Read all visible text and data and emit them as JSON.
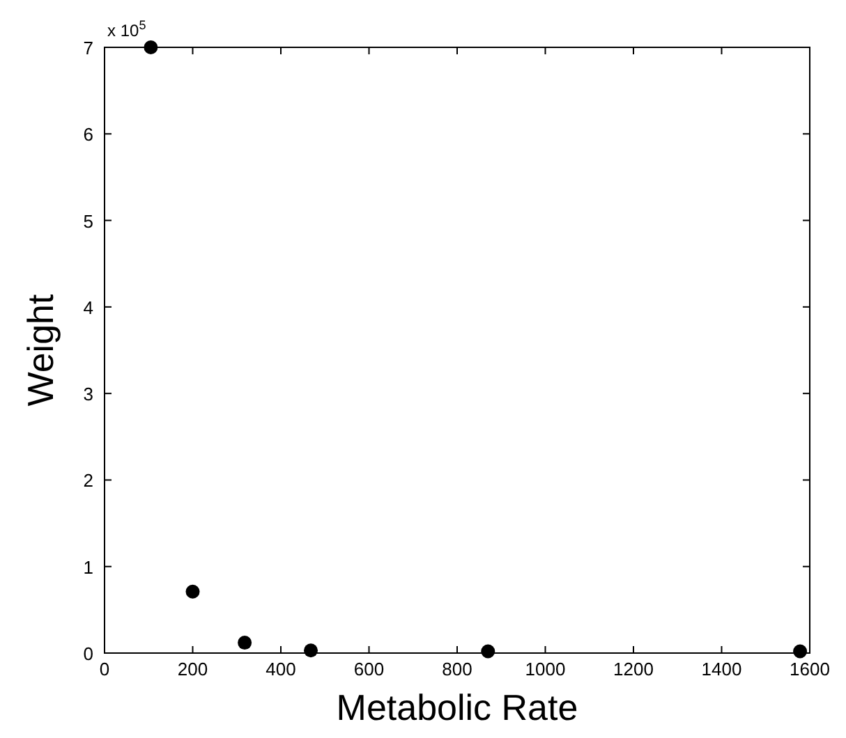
{
  "chart_data": {
    "type": "scatter",
    "xlabel": "Metabolic Rate",
    "ylabel": "Weight",
    "annotations": [
      "x 10$^{5}$"
    ],
    "x": [
      105,
      200,
      318,
      468,
      870,
      1578
    ],
    "values": [
      7,
      0.71,
      0.12,
      0.03,
      0.02,
      0.02
    ],
    "color": "#000000",
    "marker": "circle",
    "xlim": [
      0,
      1600
    ],
    "xticks": [
      0,
      200,
      400,
      600,
      800,
      1000,
      1200,
      1400,
      1600
    ],
    "ylim": [
      0,
      7
    ],
    "yticks": [
      0,
      1,
      2,
      3,
      4,
      5,
      6,
      7
    ],
    "grid": false
  }
}
